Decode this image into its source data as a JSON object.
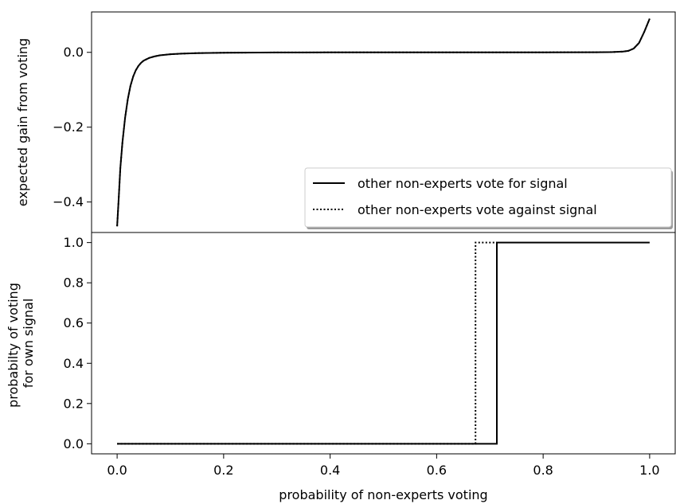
{
  "chart_data": [
    {
      "type": "line",
      "ylabel": "expected gain from voting",
      "xlim": [
        -0.048,
        1.048
      ],
      "ylim": [
        -0.4815,
        0.108
      ],
      "yticks": [
        0.0,
        -0.2,
        -0.4
      ],
      "ytick_labels": [
        "0.0",
        "−0.2",
        "−0.4"
      ],
      "grid": false,
      "legend": {
        "placement": "lower-right",
        "entries": [
          {
            "label": "other non-experts vote for signal",
            "linestyle": "solid",
            "color": "#000000"
          },
          {
            "label": "other non-experts vote against signal",
            "linestyle": "dotted",
            "color": "#000000"
          }
        ]
      },
      "series": [
        {
          "name": "other non-experts vote for signal",
          "x": [
            0.0,
            0.003,
            0.006,
            0.01,
            0.015,
            0.02,
            0.025,
            0.03,
            0.035,
            0.04,
            0.045,
            0.05,
            0.06,
            0.07,
            0.08,
            0.1,
            0.12,
            0.15,
            0.2,
            0.3,
            0.4,
            0.5,
            0.6,
            0.7,
            0.8,
            0.9,
            0.93,
            0.95,
            0.96,
            0.97,
            0.98,
            0.99,
            1.0
          ],
          "values": [
            -0.465,
            -0.39,
            -0.31,
            -0.24,
            -0.175,
            -0.125,
            -0.09,
            -0.065,
            -0.048,
            -0.036,
            -0.028,
            -0.022,
            -0.015,
            -0.011,
            -0.008,
            -0.005,
            -0.0035,
            -0.002,
            -0.001,
            -0.0004,
            -0.0001,
            0.0,
            0.0,
            0.0,
            0.0,
            0.0003,
            0.0008,
            0.002,
            0.004,
            0.01,
            0.025,
            0.055,
            0.09
          ]
        },
        {
          "name": "other non-experts vote against signal",
          "x": [
            0.0,
            0.003,
            0.006,
            0.01,
            0.015,
            0.02,
            0.025,
            0.03,
            0.035,
            0.04,
            0.045,
            0.05,
            0.06,
            0.07,
            0.08,
            0.1,
            0.12,
            0.15,
            0.2,
            0.3,
            0.4,
            0.5,
            0.6,
            0.7,
            0.8,
            0.9,
            0.93,
            0.95,
            0.96,
            0.97,
            0.98,
            0.99,
            1.0
          ],
          "values": [
            -0.465,
            -0.39,
            -0.31,
            -0.24,
            -0.175,
            -0.125,
            -0.09,
            -0.065,
            -0.048,
            -0.036,
            -0.028,
            -0.022,
            -0.015,
            -0.011,
            -0.008,
            -0.005,
            -0.0035,
            -0.002,
            -0.001,
            -0.0004,
            -0.0001,
            0.0,
            0.0,
            0.0,
            0.0,
            0.0003,
            0.0008,
            0.002,
            0.004,
            0.01,
            0.025,
            0.055,
            0.09
          ]
        }
      ]
    },
    {
      "type": "line",
      "xlabel": "probability of non-experts voting",
      "ylabel": [
        "probabilty of voting",
        "for own signal"
      ],
      "xlim": [
        -0.048,
        1.048
      ],
      "ylim": [
        -0.05,
        1.05
      ],
      "xticks": [
        0.0,
        0.2,
        0.4,
        0.6,
        0.8,
        1.0
      ],
      "xtick_labels": [
        "0.0",
        "0.2",
        "0.4",
        "0.6",
        "0.8",
        "1.0"
      ],
      "yticks": [
        0.0,
        0.2,
        0.4,
        0.6,
        0.8,
        1.0
      ],
      "ytick_labels": [
        "0.0",
        "0.2",
        "0.4",
        "0.6",
        "0.8",
        "1.0"
      ],
      "grid": false,
      "series": [
        {
          "name": "other non-experts vote for signal",
          "x": [
            0.0,
            0.713,
            0.713,
            1.0
          ],
          "values": [
            0.0,
            0.0,
            1.0,
            1.0
          ]
        },
        {
          "name": "other non-experts vote against signal",
          "x": [
            0.0,
            0.673,
            0.673,
            0.713
          ],
          "values": [
            0.0,
            0.0,
            1.0,
            1.0
          ]
        }
      ]
    }
  ]
}
